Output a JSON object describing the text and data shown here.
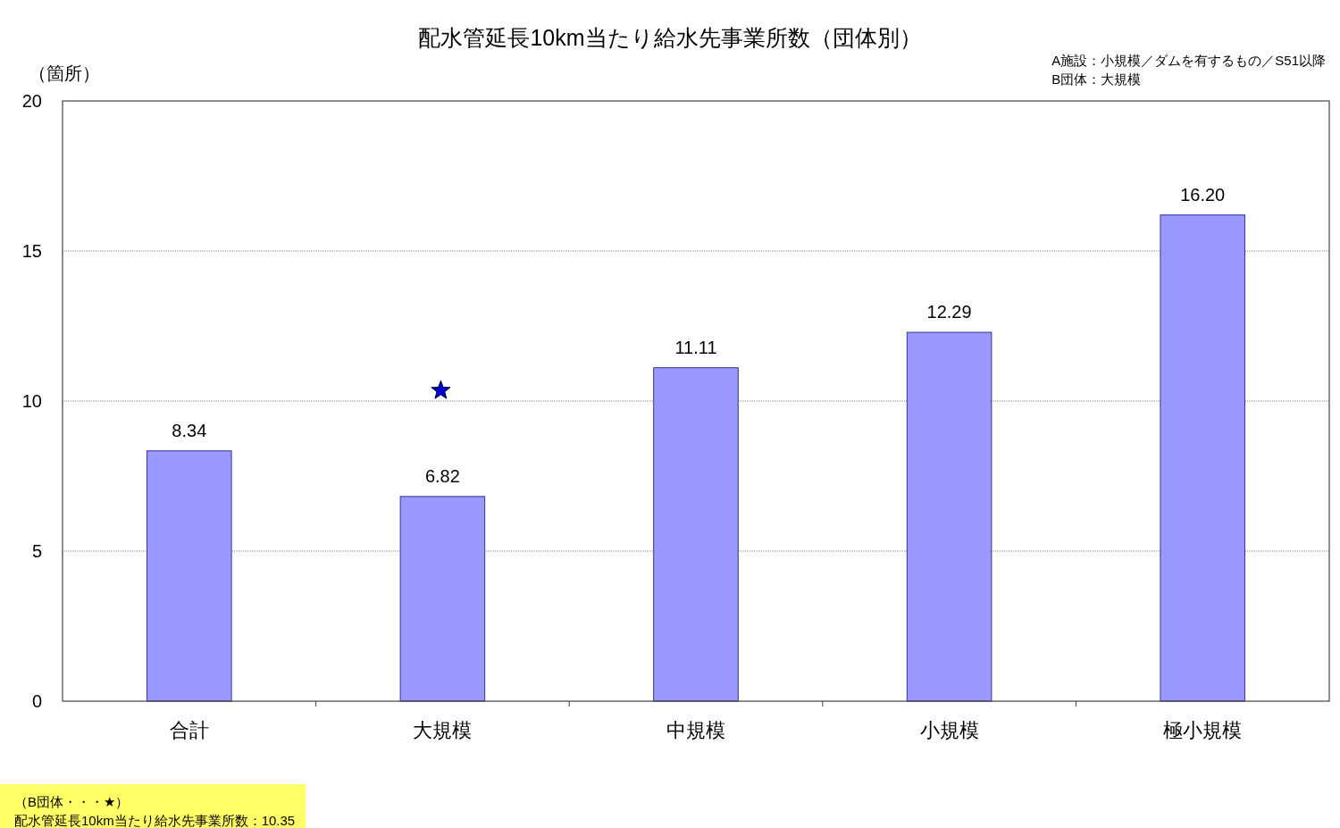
{
  "chart_data": {
    "type": "bar",
    "title": "配水管延長10km当たり給水先事業所数（団体別）",
    "ylabel": "（箇所）",
    "categories": [
      "合計",
      "大規模",
      "中規模",
      "小規模",
      "極小規模"
    ],
    "series": [
      {
        "color": "#9999ff",
        "values": [
          8.34,
          6.82,
          11.11,
          12.29,
          16.2
        ],
        "value_labels": [
          "8.34",
          "6.82",
          "11.11",
          "12.29",
          "16.20"
        ]
      },
      {
        "type": "scatter",
        "x": [
          "大規模"
        ],
        "values": [
          10.35
        ],
        "color": "#0000cc",
        "marker": "star"
      }
    ],
    "ylim": [
      0,
      20
    ],
    "yticks": [
      0,
      5,
      10,
      15,
      20
    ],
    "grid": "y",
    "annotations": [
      "A施設：小規模／ダムを有するもの／S51以降",
      "B団体：大規模",
      "（B団体・・・★）",
      "配水管延長10km当たり給水先事業所数：10.35"
    ]
  }
}
